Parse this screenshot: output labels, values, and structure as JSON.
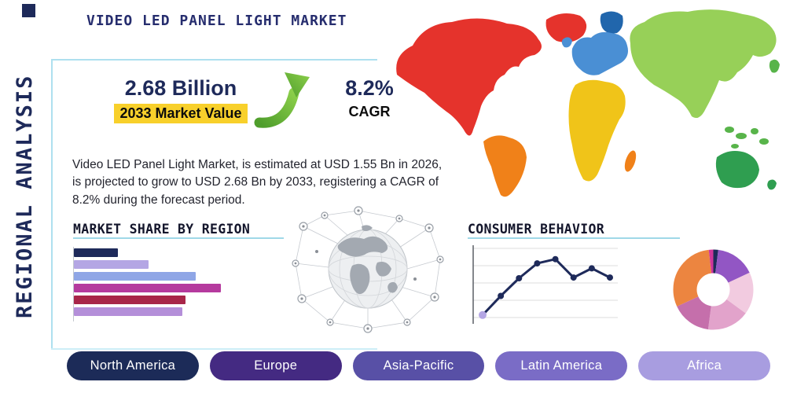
{
  "header": {
    "title": "VIDEO LED PANEL LIGHT MARKET",
    "vertical_label": "REGIONAL ANALYSIS"
  },
  "stats": {
    "market_value": "2.68 Billion",
    "market_value_caption": "2033 Market Value",
    "cagr_value": "8.2%",
    "cagr_caption": "CAGR",
    "highlight_color": "#f8d02b",
    "accent_navy": "#1e2a5a",
    "arrow_color": "#66b32e"
  },
  "description": "Video LED Panel Light Market, is estimated at USD 1.55 Bn in 2026, is projected to grow to USD 2.68 Bn by 2033, registering a CAGR of 8.2% during the forecast period.",
  "region_buttons": [
    {
      "label": "North America",
      "color": "#1c2b58"
    },
    {
      "label": "Europe",
      "color": "#442a82"
    },
    {
      "label": "Asia-Pacific",
      "color": "#5850a6"
    },
    {
      "label": "Latin America",
      "color": "#7a6cc6"
    },
    {
      "label": "Africa",
      "color": "#a89de0"
    }
  ],
  "map": {
    "regions": [
      {
        "name": "north-america",
        "color": "#e5332c"
      },
      {
        "name": "greenland",
        "color": "#e5332c"
      },
      {
        "name": "south-america",
        "color": "#f08119"
      },
      {
        "name": "europe",
        "color": "#4a8fd4"
      },
      {
        "name": "scandinavia",
        "color": "#2166ac"
      },
      {
        "name": "uk",
        "color": "#4a8fd4"
      },
      {
        "name": "africa",
        "color": "#f0c419"
      },
      {
        "name": "madagascar",
        "color": "#f08119"
      },
      {
        "name": "asia",
        "color": "#97d058"
      },
      {
        "name": "southeast-asia",
        "color": "#58b44a"
      },
      {
        "name": "japan",
        "color": "#58b44a"
      },
      {
        "name": "australia",
        "color": "#2f9e50"
      },
      {
        "name": "new-zealand",
        "color": "#2f9e50"
      }
    ]
  },
  "chart_data": [
    {
      "id": "market-share-by-region",
      "type": "bar",
      "orientation": "horizontal",
      "title": "MARKET SHARE BY REGION",
      "values": [
        30,
        51,
        83,
        100,
        76,
        74
      ],
      "value_note": "relative bar lengths, no axis labels shown",
      "colors": [
        "#1e2a5a",
        "#b4a6e4",
        "#8fa6e6",
        "#b53a9e",
        "#a82649",
        "#b48fd9"
      ]
    },
    {
      "id": "consumer-behavior",
      "type": "line",
      "title": "CONSUMER BEHAVIOR",
      "values": [
        8,
        35,
        60,
        81,
        87,
        61,
        74,
        61
      ],
      "value_note": "relative trend values 0-100, no axis labels shown",
      "line_color": "#1e2a5a",
      "start_marker_color": "#b4a6e4",
      "grid": true
    },
    {
      "id": "regional-share-donut",
      "type": "pie",
      "donut": true,
      "values": [
        2,
        16,
        17,
        17,
        16,
        30,
        2
      ],
      "value_note": "estimated slice percentages, no labels shown",
      "colors": [
        "#1e2a5a",
        "#9256c4",
        "#f2cbe0",
        "#e2a3cb",
        "#c56fab",
        "#ec8540",
        "#d0359b"
      ]
    }
  ]
}
